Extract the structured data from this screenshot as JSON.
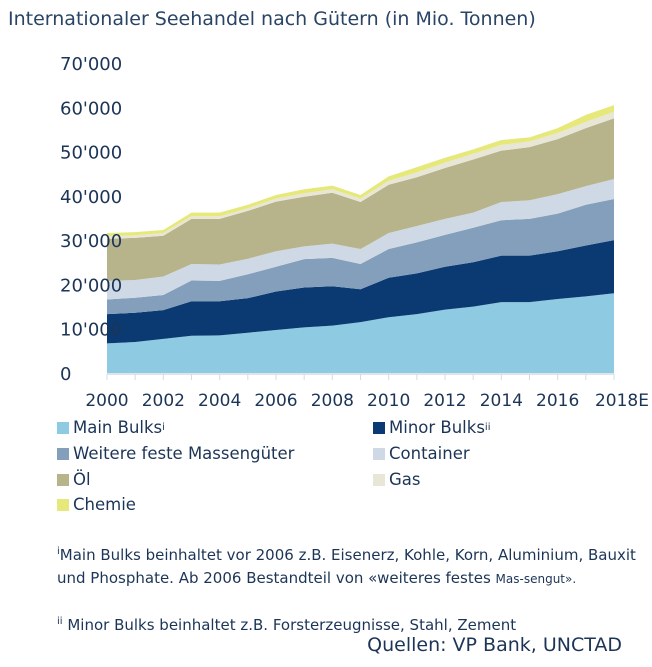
{
  "chart_data": {
    "type": "area",
    "stacked": true,
    "title": "Internationaler Seehandel nach Gütern (in Mio. Tonnen)",
    "x": [
      "2000",
      "2001",
      "2002",
      "2003",
      "2004",
      "2005",
      "2006",
      "2007",
      "2008",
      "2009",
      "2010",
      "2011",
      "2012",
      "2013",
      "2014",
      "2015",
      "2016",
      "2017",
      "2018E"
    ],
    "x_tick_labels": [
      "2000",
      "2002",
      "2004",
      "2006",
      "2008",
      "2010",
      "2012",
      "2014",
      "2016",
      "2018E"
    ],
    "y_tick_labels": [
      "0",
      "10'000",
      "20'000",
      "30'000",
      "40'000",
      "50'000",
      "60'000",
      "70'000"
    ],
    "ylim": [
      0,
      70000
    ],
    "grid": false,
    "legend_position": "bottom",
    "series": [
      {
        "name": "Main Bulks",
        "sup": "i",
        "color": "#8ecae2",
        "values": [
          6700,
          7000,
          7700,
          8400,
          8500,
          9100,
          9700,
          10300,
          10700,
          11500,
          12600,
          13300,
          14300,
          15000,
          16000,
          16000,
          16700,
          17300,
          18000
        ]
      },
      {
        "name": "Minor Bulks",
        "sup": "ii",
        "color": "#0b3a73",
        "values": [
          6600,
          6600,
          6500,
          7800,
          7700,
          7800,
          8700,
          9000,
          8900,
          7400,
          8900,
          9200,
          9700,
          10000,
          10500,
          10500,
          10800,
          11500,
          12000
        ]
      },
      {
        "name": "Weitere feste Massengüter",
        "color": "#839fbb",
        "values": [
          3300,
          3400,
          3400,
          4700,
          4600,
          5400,
          5600,
          6400,
          6400,
          5700,
          6500,
          7000,
          7200,
          7800,
          8000,
          8300,
          8500,
          9200,
          9300
        ]
      },
      {
        "name": "Container",
        "color": "#cfd9e5",
        "values": [
          4200,
          4000,
          4200,
          3700,
          3700,
          3500,
          3500,
          2900,
          3200,
          3400,
          3600,
          3700,
          3600,
          3400,
          4100,
          4200,
          4400,
          4200,
          4500
        ]
      },
      {
        "name": "Öl",
        "color": "#b7b38b",
        "values": [
          9500,
          9500,
          9200,
          10200,
          10300,
          10800,
          11200,
          11200,
          11500,
          10600,
          10900,
          11000,
          11500,
          12000,
          11600,
          12000,
          12400,
          13100,
          13700
        ]
      },
      {
        "name": "Gas",
        "color": "#e8e6d6",
        "values": [
          600,
          600,
          600,
          600,
          600,
          600,
          700,
          800,
          800,
          800,
          900,
          1100,
          1200,
          1300,
          1300,
          1300,
          1400,
          1400,
          1500
        ]
      },
      {
        "name": "Chemie",
        "color": "#e6e87a",
        "values": [
          700,
          700,
          700,
          800,
          800,
          800,
          800,
          900,
          800,
          800,
          1000,
          1200,
          1100,
          1000,
          1100,
          900,
          1100,
          1600,
          1500
        ]
      }
    ]
  },
  "footnotes": {
    "note1_marker": "i",
    "note1_text": "Main Bulks beinhaltet vor 2006 z.B. Eisenerz, Kohle, Korn, Aluminium, Bauxit und Phosphate. Ab 2006 Bestandteil von «weiteres festes ",
    "note1_small": "Mas-sengut».",
    "note2_marker": "ii",
    "note2_text": "Minor Bulks beinhaltet z.B. Forsterzeugnisse, Stahl, Zement"
  },
  "source": "Quellen: VP Bank, UNCTAD"
}
